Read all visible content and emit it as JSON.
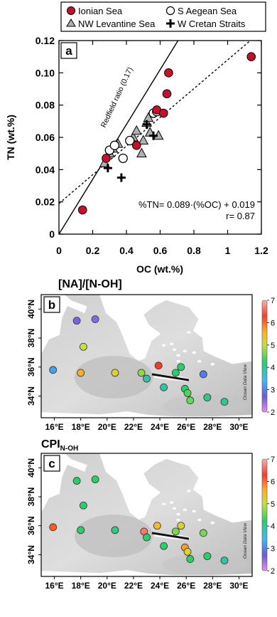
{
  "legend": {
    "items": [
      {
        "label": "Ionian Sea",
        "marker": "circle",
        "fill": "#c8102e"
      },
      {
        "label": "S Aegean Sea",
        "marker": "circle",
        "fill": "#ffffff"
      },
      {
        "label": "NW Levantine Sea",
        "marker": "triangle",
        "fill": "#b0b0b0"
      },
      {
        "label": "W Cretan Straits",
        "marker": "cross",
        "fill": "#000000"
      }
    ]
  },
  "chart_data": [
    {
      "type": "scatter",
      "panel_label": "a",
      "xlabel": "OC (wt.%)",
      "ylabel": "TN (wt.%)",
      "xlim": [
        0,
        1.2
      ],
      "ylim": [
        0,
        0.12
      ],
      "xticks": [
        "0",
        "0.2",
        "0.4",
        "0.6",
        "0.8",
        "1",
        "1.2"
      ],
      "yticks": [
        "0",
        "0.02",
        "0.04",
        "0.06",
        "0.08",
        "0.10",
        "0.12"
      ],
      "series": [
        {
          "name": "Ionian Sea",
          "points": [
            [
              0.14,
              0.015
            ],
            [
              0.28,
              0.047
            ],
            [
              0.46,
              0.055
            ],
            [
              0.58,
              0.077
            ],
            [
              0.62,
              0.075
            ],
            [
              0.64,
              0.087
            ],
            [
              0.65,
              0.1
            ],
            [
              1.14,
              0.11
            ]
          ]
        },
        {
          "name": "S Aegean Sea",
          "points": [
            [
              0.3,
              0.052
            ],
            [
              0.33,
              0.055
            ],
            [
              0.38,
              0.047
            ],
            [
              0.42,
              0.058
            ],
            [
              0.56,
              0.075
            ],
            [
              0.58,
              0.076
            ]
          ]
        },
        {
          "name": "NW Levantine Sea",
          "points": [
            [
              0.27,
              0.044
            ],
            [
              0.3,
              0.05
            ],
            [
              0.32,
              0.053
            ],
            [
              0.35,
              0.056
            ],
            [
              0.44,
              0.06
            ],
            [
              0.46,
              0.064
            ],
            [
              0.49,
              0.05
            ],
            [
              0.5,
              0.058
            ],
            [
              0.52,
              0.069
            ],
            [
              0.53,
              0.072
            ],
            [
              0.54,
              0.063
            ],
            [
              0.59,
              0.061
            ]
          ]
        },
        {
          "name": "W Cretan Straits",
          "points": [
            [
              0.29,
              0.041
            ],
            [
              0.37,
              0.035
            ],
            [
              0.52,
              0.068
            ],
            [
              0.56,
              0.061
            ]
          ]
        }
      ],
      "lines": [
        {
          "label": "Redfield ratio (0.17)",
          "style": "solid",
          "slope": 0.17,
          "intercept": 0
        },
        {
          "label": "",
          "style": "dashed",
          "slope": 0.089,
          "intercept": 0.019
        }
      ],
      "equation": "%TN= 0.089·(%OC) + 0.019",
      "r_text": "r= 0.87"
    },
    {
      "type": "map",
      "panel_label": "b",
      "title": "[NA]/[N-OH]",
      "watermark": "Ocean Data View",
      "lon_ticks": [
        "16°E",
        "18°E",
        "20°E",
        "22°E",
        "24°E",
        "26°E",
        "28°E",
        "30°E"
      ],
      "lat_ticks": [
        "34°N",
        "36°N",
        "38°N",
        "40°N"
      ],
      "colorbar_ticks": [
        "2",
        "3",
        "4",
        "5",
        "6",
        "7"
      ],
      "stations": [
        {
          "lon": 17.7,
          "lat": 39.2,
          "value": 2.8
        },
        {
          "lon": 19.1,
          "lat": 39.3,
          "value": 2.7
        },
        {
          "lon": 18.2,
          "lat": 37.4,
          "value": 4.8
        },
        {
          "lon": 15.9,
          "lat": 35.8,
          "value": 3.4
        },
        {
          "lon": 18.0,
          "lat": 35.6,
          "value": 5.5
        },
        {
          "lon": 20.6,
          "lat": 35.6,
          "value": 5.0
        },
        {
          "lon": 22.6,
          "lat": 35.6,
          "value": 4.5
        },
        {
          "lon": 23.0,
          "lat": 35.2,
          "value": 3.8
        },
        {
          "lon": 23.9,
          "lat": 36.1,
          "value": 6.2
        },
        {
          "lon": 24.3,
          "lat": 34.6,
          "value": 3.8
        },
        {
          "lon": 25.2,
          "lat": 35.6,
          "value": 4.0
        },
        {
          "lon": 25.6,
          "lat": 36.0,
          "value": 4.0
        },
        {
          "lon": 25.9,
          "lat": 34.5,
          "value": 4.0
        },
        {
          "lon": 26.1,
          "lat": 34.2,
          "value": 4.2
        },
        {
          "lon": 27.3,
          "lat": 35.5,
          "value": 3.2
        },
        {
          "lon": 27.6,
          "lat": 33.9,
          "value": 3.9
        },
        {
          "lon": 28.9,
          "lat": 33.6,
          "value": 3.9
        },
        {
          "lon": 26.3,
          "lat": 33.7,
          "value": 4.3
        }
      ]
    },
    {
      "type": "map",
      "panel_label": "c",
      "title_main": "CPI",
      "title_sub": "N-OH",
      "watermark": "Ocean Data View",
      "lon_ticks": [
        "16°E",
        "18°E",
        "20°E",
        "22°E",
        "24°E",
        "26°E",
        "28°E",
        "30°E"
      ],
      "lat_ticks": [
        "34°N",
        "36°N",
        "38°N",
        "40°N"
      ],
      "colorbar_ticks": [
        "2",
        "3",
        "4",
        "5",
        "6",
        "7"
      ],
      "stations": [
        {
          "lon": 17.7,
          "lat": 39.1,
          "value": 4.0
        },
        {
          "lon": 19.1,
          "lat": 39.2,
          "value": 4.0
        },
        {
          "lon": 18.2,
          "lat": 37.4,
          "value": 4.0
        },
        {
          "lon": 15.9,
          "lat": 35.9,
          "value": 6.0
        },
        {
          "lon": 18.0,
          "lat": 35.7,
          "value": 4.0
        },
        {
          "lon": 20.6,
          "lat": 35.7,
          "value": 3.9
        },
        {
          "lon": 22.8,
          "lat": 35.6,
          "value": 6.6
        },
        {
          "lon": 23.0,
          "lat": 35.2,
          "value": 4.0
        },
        {
          "lon": 23.8,
          "lat": 36.0,
          "value": 5.3
        },
        {
          "lon": 24.3,
          "lat": 34.6,
          "value": 4.0
        },
        {
          "lon": 25.2,
          "lat": 35.6,
          "value": 4.4
        },
        {
          "lon": 25.6,
          "lat": 36.0,
          "value": 5.0
        },
        {
          "lon": 25.9,
          "lat": 34.5,
          "value": 5.6
        },
        {
          "lon": 26.1,
          "lat": 34.2,
          "value": 5.0
        },
        {
          "lon": 27.3,
          "lat": 35.5,
          "value": 4.4
        },
        {
          "lon": 27.6,
          "lat": 33.9,
          "value": 4.0
        },
        {
          "lon": 28.9,
          "lat": 33.6,
          "value": 3.8
        },
        {
          "lon": 26.3,
          "lat": 33.7,
          "value": 4.0
        }
      ]
    }
  ]
}
